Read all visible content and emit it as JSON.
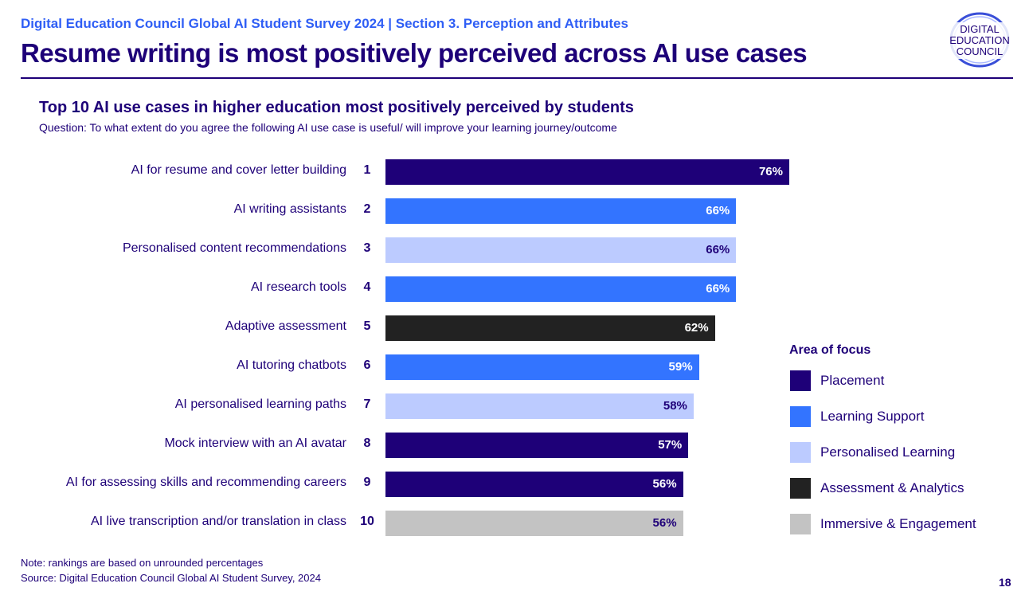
{
  "header": {
    "kicker": "Digital Education Council Global AI Student Survey 2024 | Section 3. Perception and Attributes",
    "title": "Resume writing is most positively perceived across AI use cases",
    "logo_text": [
      "DIGITAL",
      "EDUCATION",
      "COUNCIL"
    ]
  },
  "colors": {
    "Placement": "#1e0078",
    "Learning Support": "#3374ff",
    "Personalised Learning": "#bccbff",
    "Assessment & Analytics": "#222222",
    "Immersive & Engagement": "#c3c3c3"
  },
  "chart_data": {
    "type": "bar",
    "orientation": "horizontal",
    "title": "Top 10 AI use cases in higher education most positively perceived by students",
    "subtitle": "Question: To what extent do you agree the following AI use case is useful/ will improve your learning journey/outcome",
    "xlim": [
      0,
      100
    ],
    "categories": [
      "AI for resume and cover letter building",
      "AI writing assistants",
      "Personalised content recommendations",
      "AI research tools",
      "Adaptive assessment",
      "AI tutoring chatbots",
      "AI personalised learning paths",
      "Mock interview with an AI avatar",
      "AI for assessing skills and recommending careers",
      "AI live transcription and/or translation in class"
    ],
    "ranks": [
      "1",
      "2",
      "3",
      "4",
      "5",
      "6",
      "7",
      "8",
      "9",
      "10"
    ],
    "values": [
      76,
      66,
      66,
      66,
      62,
      59,
      58,
      57,
      56,
      56
    ],
    "value_labels": [
      "76%",
      "66%",
      "66%",
      "66%",
      "62%",
      "59%",
      "58%",
      "57%",
      "56%",
      "56%"
    ],
    "groups": [
      "Placement",
      "Learning Support",
      "Personalised Learning",
      "Learning Support",
      "Assessment & Analytics",
      "Learning Support",
      "Personalised Learning",
      "Placement",
      "Placement",
      "Immersive & Engagement"
    ],
    "legend_title": "Area of focus",
    "legend": [
      "Placement",
      "Learning Support",
      "Personalised Learning",
      "Assessment & Analytics",
      "Immersive & Engagement"
    ],
    "legend_placement": "right"
  },
  "footer": {
    "note": "Note: rankings are based on unrounded percentages",
    "source": "Source: Digital Education Council Global AI Student Survey, 2024",
    "page": "18"
  }
}
